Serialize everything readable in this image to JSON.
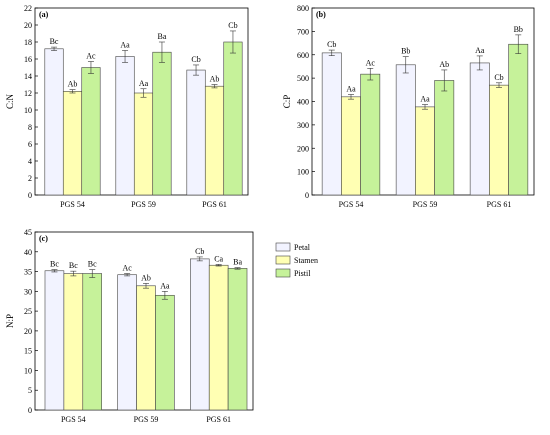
{
  "colors": {
    "Petal": "#f2f3ff",
    "Stamen": "#ffffb3",
    "Pistil": "#c6f29a",
    "axis": "#000000",
    "bar_stroke": "#444444"
  },
  "legend": {
    "items": [
      "Petal",
      "Stamen",
      "Pistil"
    ],
    "placement": "right"
  },
  "chart_data": [
    {
      "type": "bar",
      "panel_label": "(a)",
      "ylabel": "C:N",
      "categories": [
        "PGS 54",
        "PGS 59",
        "PGS 61"
      ],
      "ylim": [
        0,
        22
      ],
      "yticks": [
        0,
        2,
        4,
        6,
        8,
        10,
        12,
        14,
        16,
        18,
        20,
        22
      ],
      "series": [
        {
          "name": "Petal",
          "values": [
            17.2,
            16.3,
            14.7
          ],
          "errors": [
            0.2,
            0.7,
            0.6
          ],
          "labels": [
            "Bc",
            "Aa",
            "Cb"
          ]
        },
        {
          "name": "Stamen",
          "values": [
            12.2,
            12.0,
            12.8
          ],
          "errors": [
            0.2,
            0.5,
            0.2
          ],
          "labels": [
            "Ab",
            "Aa",
            "Ab"
          ]
        },
        {
          "name": "Pistil",
          "values": [
            15.0,
            16.8,
            18.0
          ],
          "errors": [
            0.7,
            1.2,
            1.3
          ],
          "labels": [
            "Ac",
            "Ba",
            "Cb"
          ]
        }
      ]
    },
    {
      "type": "bar",
      "panel_label": "(b)",
      "ylabel": "C:P",
      "categories": [
        "PGS 54",
        "PGS 59",
        "PGS 61"
      ],
      "ylim": [
        0,
        800
      ],
      "yticks": [
        0,
        100,
        200,
        300,
        400,
        500,
        600,
        700,
        800
      ],
      "series": [
        {
          "name": "Petal",
          "values": [
            608,
            557,
            565
          ],
          "errors": [
            12,
            35,
            30
          ],
          "labels": [
            "Cb",
            "Bb",
            "Aa"
          ]
        },
        {
          "name": "Stamen",
          "values": [
            420,
            377,
            470
          ],
          "errors": [
            10,
            10,
            10
          ],
          "labels": [
            "Aa",
            "Aa",
            "Cb"
          ]
        },
        {
          "name": "Pistil",
          "values": [
            517,
            490,
            645
          ],
          "errors": [
            25,
            45,
            40
          ],
          "labels": [
            "Ac",
            "Ab",
            "Bb"
          ]
        }
      ]
    },
    {
      "type": "bar",
      "panel_label": "(c)",
      "ylabel": "N:P",
      "categories": [
        "PGS 54",
        "PGS 59",
        "PGS 61"
      ],
      "ylim": [
        0,
        45
      ],
      "yticks": [
        0,
        5,
        10,
        15,
        20,
        25,
        30,
        35,
        40,
        45
      ],
      "series": [
        {
          "name": "Petal",
          "values": [
            35.2,
            34.2,
            38.2
          ],
          "errors": [
            0.3,
            0.3,
            0.5
          ],
          "labels": [
            "Bc",
            "Ac",
            "Cb"
          ]
        },
        {
          "name": "Stamen",
          "values": [
            34.5,
            31.4,
            36.6
          ],
          "errors": [
            0.6,
            0.6,
            0.2
          ],
          "labels": [
            "Bc",
            "Ab",
            "Ca"
          ]
        },
        {
          "name": "Pistil",
          "values": [
            34.5,
            29.0,
            35.8
          ],
          "errors": [
            1.0,
            1.0,
            0.2
          ],
          "labels": [
            "Bc",
            "Aa",
            "Ba"
          ]
        }
      ]
    }
  ]
}
